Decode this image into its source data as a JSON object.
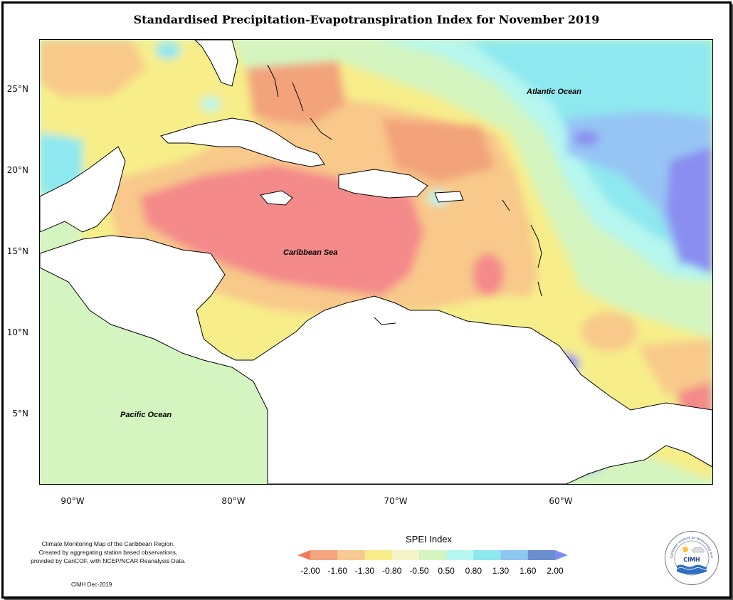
{
  "title": "Standardised Precipitation-Evapotranspiration Index for November 2019",
  "map": {
    "lat_ticks": [
      "25°N",
      "20°N",
      "15°N",
      "10°N",
      "5°N"
    ],
    "lon_ticks": [
      "90°W",
      "80°W",
      "70°W",
      "60°W"
    ],
    "labels": {
      "atlantic": "Atlantic Ocean",
      "caribbean": "Caribbean Sea",
      "pacific": "Pacific Ocean"
    },
    "colors": {
      "very_dry": "#f48a8a",
      "dry": "#f3a37a",
      "mod_dry": "#f8c98a",
      "slightly_dry": "#f7ee8a",
      "near_normal": "#f5f3c8",
      "slightly_wet": "#d4f5c0",
      "mod_wet": "#b6f7ef",
      "wet": "#8ee8ef",
      "very_wet": "#96c4f4",
      "extremely_wet": "#8a8ef0"
    }
  },
  "credits": {
    "line1": "Climate Monitoring Map of the Caribbean Region.",
    "line2": "Created by aggregating station based observations,",
    "line3": "provided by CariCOF, with NCEP/NCAR Reanalysis Data.",
    "date": "CIMH Dec-2019"
  },
  "legend": {
    "title": "SPEI Index",
    "ticks": [
      "-2.00",
      "-1.60",
      "-1.30",
      "-0.80",
      "-0.50",
      "0.50",
      "0.80",
      "1.30",
      "1.60",
      "2.00"
    ],
    "colors": [
      "#f07a5e",
      "#f4a57e",
      "#f8c990",
      "#f7ee8a",
      "#f5f3c8",
      "#d4f5c0",
      "#b6f7ef",
      "#8ee8ef",
      "#8ec8f0",
      "#6a8ed0",
      "#7b8ef0"
    ]
  },
  "logo": {
    "name": "CIMH",
    "ring_text": "Caribbean Institute for Meteorology and Hydrology"
  }
}
